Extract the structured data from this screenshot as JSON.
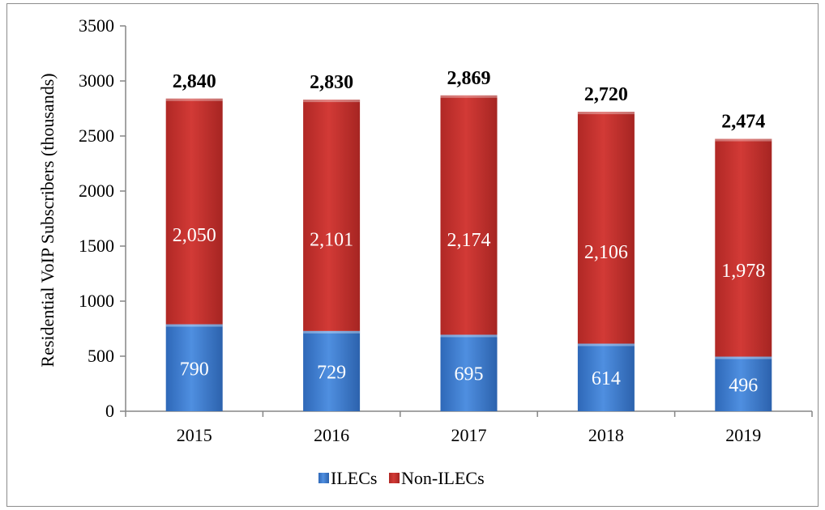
{
  "chart_data": {
    "type": "bar",
    "stacked": true,
    "categories": [
      "2015",
      "2016",
      "2017",
      "2018",
      "2019"
    ],
    "series": [
      {
        "name": "ILECs",
        "values": [
          790,
          729,
          695,
          614,
          496
        ],
        "color": "#3f7fd0"
      },
      {
        "name": "Non-ILECs",
        "values": [
          2050,
          2101,
          2174,
          2106,
          1978
        ],
        "color": "#c0302e"
      }
    ],
    "segment_labels": [
      [
        "790",
        "729",
        "695",
        "614",
        "496"
      ],
      [
        "2,050",
        "2,101",
        "2,174",
        "2,106",
        "1,978"
      ]
    ],
    "totals": [
      2840,
      2830,
      2869,
      2720,
      2474
    ],
    "total_labels": [
      "2,840",
      "2,830",
      "2,869",
      "2,720",
      "2,474"
    ],
    "title": "",
    "xlabel": "",
    "ylabel": "Residential VoIP Subscribers (thousands)",
    "ylim": [
      0,
      3500
    ],
    "yticks": [
      0,
      500,
      1000,
      1500,
      2000,
      2500,
      3000,
      3500
    ],
    "grid": false,
    "legend": "bottom"
  }
}
